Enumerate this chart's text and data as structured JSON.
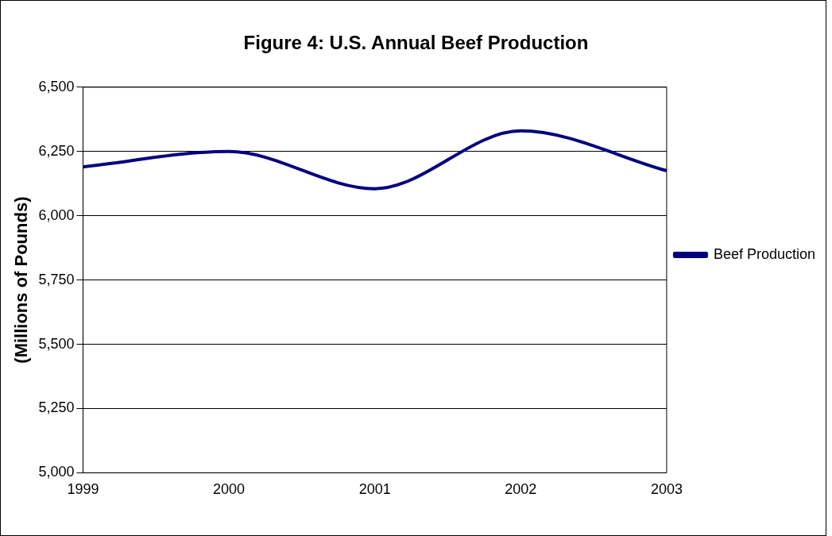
{
  "chart_data": {
    "type": "line",
    "title": "Figure 4: U.S. Annual Beef Production",
    "ylabel": "(Millions of Pounds)",
    "categories": [
      "1999",
      "2000",
      "2001",
      "2002",
      "2003"
    ],
    "series": [
      {
        "name": "Beef Production",
        "color": "#000080",
        "values": [
          6190,
          6250,
          6105,
          6330,
          6175
        ]
      }
    ],
    "ylim": [
      5000,
      6500
    ],
    "yticks": [
      {
        "value": 5000,
        "label": "5,000"
      },
      {
        "value": 5250,
        "label": "5,250"
      },
      {
        "value": 5500,
        "label": "5,500"
      },
      {
        "value": 5750,
        "label": "5,750"
      },
      {
        "value": 6000,
        "label": "6,000"
      },
      {
        "value": 6250,
        "label": "6,250"
      },
      {
        "value": 6500,
        "label": "6,500"
      }
    ],
    "grid": "y",
    "legend": "right",
    "marker": "none",
    "line_style": "solid"
  }
}
